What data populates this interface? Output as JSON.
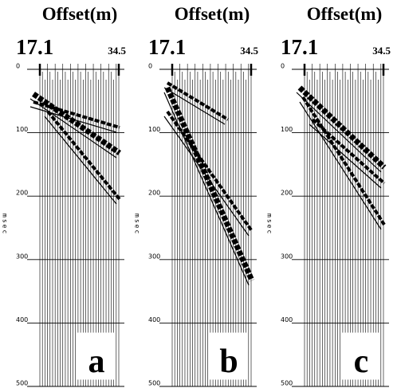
{
  "panels": [
    {
      "title": "Offset(m)",
      "offset_start": "17.1",
      "offset_end": "34.5",
      "time_label": "msec",
      "time_ticks": [
        0,
        100,
        200,
        300,
        400,
        500
      ],
      "label": "a"
    },
    {
      "title": "Offset(m)",
      "offset_start": "17.1",
      "offset_end": "34.5",
      "time_label": "msec",
      "time_ticks": [
        0,
        100,
        200,
        300,
        400,
        500
      ],
      "label": "b"
    },
    {
      "title": "Offset(m)",
      "offset_start": "17.1",
      "offset_end": "34.5",
      "time_label": "msec",
      "time_ticks": [
        0,
        100,
        200,
        300,
        400,
        500
      ],
      "label": "c"
    }
  ]
}
